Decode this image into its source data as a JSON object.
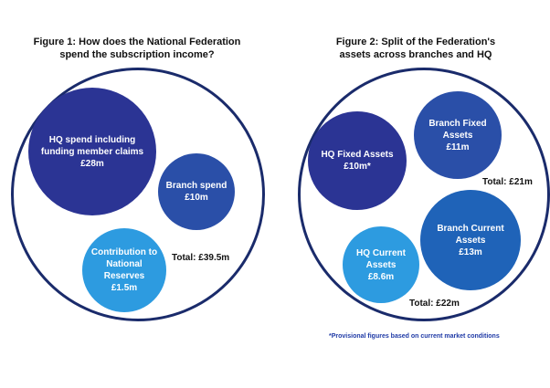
{
  "chart_data": [
    {
      "type": "bubble",
      "title_lines": [
        "Figure 1: How does the National Federation",
        "spend the subscription income?"
      ],
      "unit": "£m",
      "items": [
        {
          "label_lines": [
            "HQ spend including",
            "funding member claims"
          ],
          "value_label": "£28m",
          "value": 28,
          "color": "#2b3494"
        },
        {
          "label_lines": [
            "Branch spend"
          ],
          "value_label": "£10m",
          "value": 10,
          "color": "#2a4fa8"
        },
        {
          "label_lines": [
            "Contribution to",
            "National Reserves"
          ],
          "value_label": "£1.5m",
          "value": 1.5,
          "color": "#2d9be0"
        }
      ],
      "total_label": "Total: £39.5m"
    },
    {
      "type": "bubble",
      "title_lines": [
        "Figure 2: Split of the Federation's",
        "assets across branches and HQ"
      ],
      "unit": "£m",
      "items": [
        {
          "label_lines": [
            "HQ Fixed Assets"
          ],
          "value_label": "£10m*",
          "value": 10,
          "color": "#2b3494"
        },
        {
          "label_lines": [
            "Branch Fixed Assets"
          ],
          "value_label": "£11m",
          "value": 11,
          "color": "#2a4fa8"
        },
        {
          "label_lines": [
            "Branch Current",
            "Assets"
          ],
          "value_label": "£13m",
          "value": 13,
          "color": "#1f63b8"
        },
        {
          "label_lines": [
            "HQ Current",
            "Assets"
          ],
          "value_label": "£8.6m",
          "value": 8.6,
          "color": "#2d9be0"
        }
      ],
      "totals": [
        "Total: £21m",
        "Total: £22m"
      ],
      "footnote": "*Provisional figures based on current market conditions"
    }
  ]
}
